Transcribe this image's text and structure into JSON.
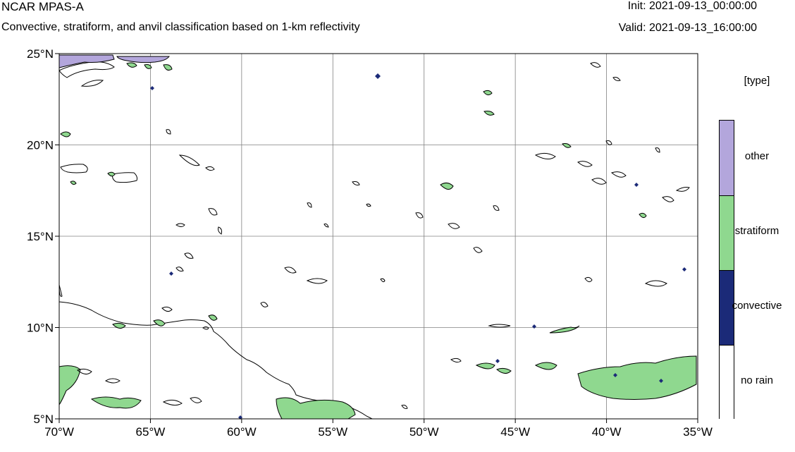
{
  "header": {
    "model": "NCAR MPAS-A",
    "subtitle": "Convective, stratiform, and anvil classification based on 1-km reflectivity",
    "init": "Init: 2021-09-13_00:00:00",
    "valid": "Valid: 2021-09-13_16:00:00"
  },
  "map": {
    "lon_labels": [
      "70°W",
      "65°W",
      "60°W",
      "55°W",
      "50°W",
      "45°W",
      "40°W",
      "35°W"
    ],
    "lat_labels": [
      "25°N",
      "20°N",
      "15°N",
      "10°N",
      "5°N"
    ],
    "lon_range": [
      -70,
      -35
    ],
    "lat_range": [
      5,
      25
    ],
    "grid": true,
    "colors": {
      "coastline": "#000000",
      "stratiform": "#8fd88f",
      "convective": "#1b2a78",
      "other": "#b3a6dc",
      "gridline": "#808080"
    }
  },
  "legend": {
    "title": "[type]",
    "items": [
      {
        "label": "other",
        "color": "#b3a6dc"
      },
      {
        "label": "stratiform",
        "color": "#8fd88f"
      },
      {
        "label": "convective",
        "color": "#1b2a78"
      },
      {
        "label": "no rain",
        "color": "#ffffff"
      }
    ]
  }
}
